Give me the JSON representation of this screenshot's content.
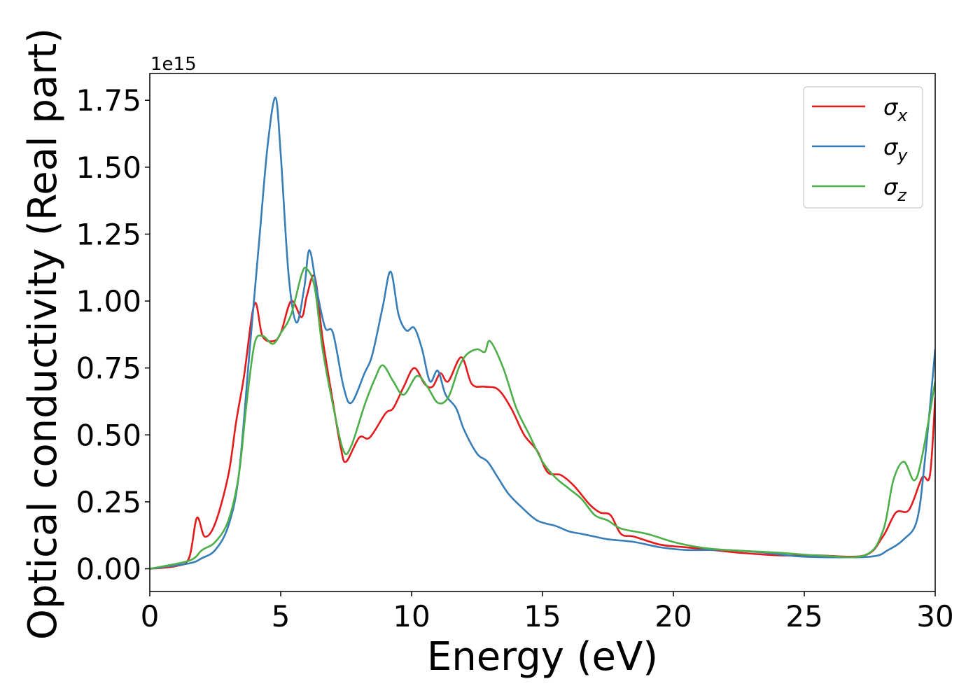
{
  "chart_data": {
    "type": "line",
    "title": "",
    "xlabel": "Energy (eV)",
    "ylabel": "Optical conductivity (Real part)",
    "y_offset_label": "1e15",
    "y_scale_factor": 1000000000000000.0,
    "xlim": [
      0,
      30
    ],
    "ylim": [
      -0.085,
      1.85
    ],
    "xticks": [
      0,
      5,
      10,
      15,
      20,
      25,
      30
    ],
    "xtick_labels": [
      "0",
      "5",
      "10",
      "15",
      "20",
      "25",
      "30"
    ],
    "yticks": [
      0.0,
      0.25,
      0.5,
      0.75,
      1.0,
      1.25,
      1.5,
      1.75
    ],
    "ytick_labels": [
      "0.00",
      "0.25",
      "0.50",
      "0.75",
      "1.00",
      "1.25",
      "1.50",
      "1.75"
    ],
    "grid": false,
    "legend_position": "top-right",
    "series": [
      {
        "name": "σx",
        "legend_symbol": "σ",
        "legend_subscript": "x",
        "color": "#e41a1c",
        "points": [
          [
            0,
            0
          ],
          [
            1,
            0.01
          ],
          [
            1.5,
            0.04
          ],
          [
            1.8,
            0.19
          ],
          [
            2.1,
            0.12
          ],
          [
            2.5,
            0.17
          ],
          [
            3,
            0.35
          ],
          [
            3.3,
            0.55
          ],
          [
            3.6,
            0.72
          ],
          [
            4,
            0.99
          ],
          [
            4.3,
            0.87
          ],
          [
            4.7,
            0.85
          ],
          [
            5,
            0.88
          ],
          [
            5.4,
            1.0
          ],
          [
            5.8,
            0.94
          ],
          [
            6,
            1.02
          ],
          [
            6.3,
            1.09
          ],
          [
            6.6,
            0.86
          ],
          [
            7,
            0.62
          ],
          [
            7.3,
            0.45
          ],
          [
            7.5,
            0.4
          ],
          [
            8,
            0.49
          ],
          [
            8.4,
            0.49
          ],
          [
            9,
            0.58
          ],
          [
            9.3,
            0.6
          ],
          [
            9.7,
            0.68
          ],
          [
            10.1,
            0.75
          ],
          [
            10.5,
            0.69
          ],
          [
            10.8,
            0.68
          ],
          [
            11.1,
            0.73
          ],
          [
            11.4,
            0.7
          ],
          [
            11.9,
            0.79
          ],
          [
            12.3,
            0.69
          ],
          [
            12.8,
            0.68
          ],
          [
            13.3,
            0.67
          ],
          [
            13.8,
            0.6
          ],
          [
            14.3,
            0.5
          ],
          [
            14.8,
            0.44
          ],
          [
            15.2,
            0.36
          ],
          [
            15.7,
            0.35
          ],
          [
            16.2,
            0.31
          ],
          [
            16.8,
            0.24
          ],
          [
            17.2,
            0.21
          ],
          [
            17.6,
            0.2
          ],
          [
            18,
            0.13
          ],
          [
            18.5,
            0.12
          ],
          [
            19.5,
            0.09
          ],
          [
            20.5,
            0.08
          ],
          [
            21.5,
            0.07
          ],
          [
            22.5,
            0.06
          ],
          [
            24,
            0.05
          ],
          [
            25.5,
            0.05
          ],
          [
            27.3,
            0.05
          ],
          [
            28,
            0.12
          ],
          [
            28.5,
            0.21
          ],
          [
            29,
            0.22
          ],
          [
            29.5,
            0.34
          ],
          [
            29.8,
            0.35
          ],
          [
            30,
            0.64
          ]
        ]
      },
      {
        "name": "σy",
        "legend_symbol": "σ",
        "legend_subscript": "y",
        "color": "#377eb8",
        "points": [
          [
            0,
            0
          ],
          [
            1.5,
            0.02
          ],
          [
            2,
            0.04
          ],
          [
            2.5,
            0.07
          ],
          [
            3,
            0.16
          ],
          [
            3.4,
            0.35
          ],
          [
            3.8,
            0.8
          ],
          [
            4.2,
            1.25
          ],
          [
            4.5,
            1.58
          ],
          [
            4.8,
            1.76
          ],
          [
            5,
            1.55
          ],
          [
            5.3,
            1.1
          ],
          [
            5.6,
            0.92
          ],
          [
            5.9,
            1.05
          ],
          [
            6.1,
            1.19
          ],
          [
            6.4,
            1.03
          ],
          [
            6.7,
            0.9
          ],
          [
            7,
            0.88
          ],
          [
            7.4,
            0.68
          ],
          [
            7.7,
            0.62
          ],
          [
            8.2,
            0.73
          ],
          [
            8.5,
            0.8
          ],
          [
            8.9,
            0.98
          ],
          [
            9.2,
            1.11
          ],
          [
            9.5,
            0.95
          ],
          [
            9.8,
            0.89
          ],
          [
            10.1,
            0.9
          ],
          [
            10.4,
            0.82
          ],
          [
            10.7,
            0.7
          ],
          [
            11,
            0.74
          ],
          [
            11.3,
            0.65
          ],
          [
            11.7,
            0.6
          ],
          [
            12,
            0.52
          ],
          [
            12.5,
            0.43
          ],
          [
            12.9,
            0.4
          ],
          [
            13.3,
            0.34
          ],
          [
            13.7,
            0.28
          ],
          [
            14.2,
            0.23
          ],
          [
            14.8,
            0.18
          ],
          [
            15.5,
            0.16
          ],
          [
            16,
            0.14
          ],
          [
            16.5,
            0.13
          ],
          [
            17,
            0.12
          ],
          [
            17.5,
            0.11
          ],
          [
            18.5,
            0.1
          ],
          [
            19.5,
            0.08
          ],
          [
            20.5,
            0.07
          ],
          [
            22,
            0.07
          ],
          [
            23.5,
            0.06
          ],
          [
            25,
            0.045
          ],
          [
            27.5,
            0.045
          ],
          [
            28.2,
            0.07
          ],
          [
            28.8,
            0.11
          ],
          [
            29.3,
            0.18
          ],
          [
            29.6,
            0.4
          ],
          [
            30,
            0.82
          ]
        ]
      },
      {
        "name": "σz",
        "legend_symbol": "σ",
        "legend_subscript": "z",
        "color": "#4daf4a",
        "points": [
          [
            0,
            0
          ],
          [
            1.5,
            0.03
          ],
          [
            2,
            0.07
          ],
          [
            2.5,
            0.1
          ],
          [
            3,
            0.18
          ],
          [
            3.4,
            0.35
          ],
          [
            3.7,
            0.62
          ],
          [
            4,
            0.84
          ],
          [
            4.3,
            0.87
          ],
          [
            4.7,
            0.84
          ],
          [
            5,
            0.88
          ],
          [
            5.4,
            0.95
          ],
          [
            5.8,
            1.1
          ],
          [
            6,
            1.12
          ],
          [
            6.3,
            1.05
          ],
          [
            6.6,
            0.82
          ],
          [
            7,
            0.61
          ],
          [
            7.4,
            0.44
          ],
          [
            7.7,
            0.46
          ],
          [
            8.2,
            0.61
          ],
          [
            8.6,
            0.71
          ],
          [
            8.9,
            0.76
          ],
          [
            9.3,
            0.7
          ],
          [
            9.7,
            0.65
          ],
          [
            10.2,
            0.72
          ],
          [
            10.6,
            0.68
          ],
          [
            11,
            0.62
          ],
          [
            11.4,
            0.64
          ],
          [
            11.8,
            0.75
          ],
          [
            12.1,
            0.8
          ],
          [
            12.5,
            0.82
          ],
          [
            12.8,
            0.81
          ],
          [
            13,
            0.85
          ],
          [
            13.5,
            0.75
          ],
          [
            14,
            0.6
          ],
          [
            14.5,
            0.5
          ],
          [
            15,
            0.4
          ],
          [
            15.5,
            0.34
          ],
          [
            16,
            0.3
          ],
          [
            16.5,
            0.26
          ],
          [
            17,
            0.2
          ],
          [
            17.5,
            0.18
          ],
          [
            18,
            0.15
          ],
          [
            19,
            0.13
          ],
          [
            20,
            0.1
          ],
          [
            21,
            0.08
          ],
          [
            22,
            0.07
          ],
          [
            24,
            0.06
          ],
          [
            25.5,
            0.05
          ],
          [
            27.3,
            0.05
          ],
          [
            28,
            0.14
          ],
          [
            28.4,
            0.33
          ],
          [
            28.8,
            0.4
          ],
          [
            29.2,
            0.33
          ],
          [
            29.5,
            0.42
          ],
          [
            30,
            0.7
          ]
        ]
      }
    ]
  }
}
